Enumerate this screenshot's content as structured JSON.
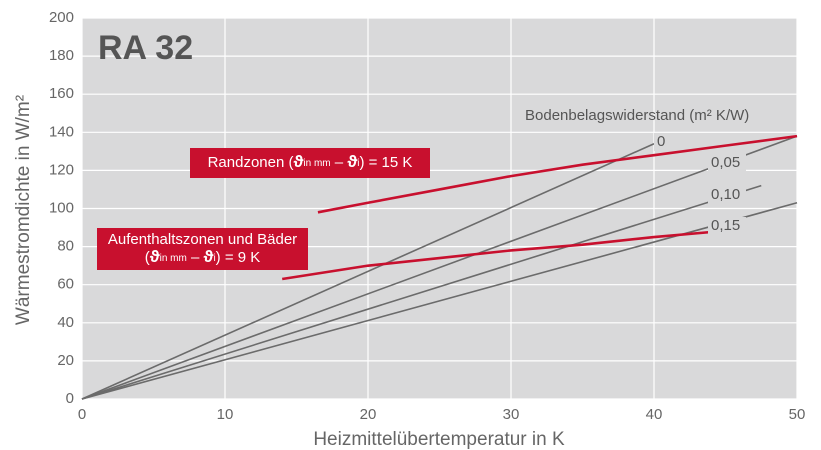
{
  "chart_data": {
    "type": "line",
    "title": "RA 32",
    "xlabel": "Heizmittelübertemperatur in K",
    "ylabel": "Wärmestromdichte in W/m²",
    "legend_title": "Bodenbelagswiderstand (m² K/W)",
    "xlim": [
      0,
      50
    ],
    "ylim": [
      0,
      200
    ],
    "xticks": [
      0,
      10,
      20,
      30,
      40,
      50
    ],
    "yticks": [
      0,
      20,
      40,
      60,
      80,
      100,
      120,
      140,
      160,
      180,
      200
    ],
    "grid": true,
    "background": "#d9d9da",
    "series": [
      {
        "name": "0",
        "color": "#6b6b6b",
        "x": [
          0,
          40
        ],
        "values": [
          0,
          134
        ]
      },
      {
        "name": "0,05",
        "color": "#6b6b6b",
        "x": [
          0,
          50
        ],
        "values": [
          0,
          138
        ]
      },
      {
        "name": "0,10",
        "color": "#6b6b6b",
        "x": [
          0,
          47.5
        ],
        "values": [
          0,
          112
        ]
      },
      {
        "name": "0,15",
        "color": "#6b6b6b",
        "x": [
          0,
          50
        ],
        "values": [
          0,
          103
        ]
      },
      {
        "color": "#c8102e",
        "x": [
          16.5,
          20,
          25,
          30,
          35,
          40,
          45,
          50
        ],
        "values": [
          98,
          103,
          110,
          117,
          123,
          128,
          133,
          138
        ]
      },
      {
        "color": "#c8102e",
        "x": [
          14,
          20,
          25,
          30,
          35,
          40,
          44.5
        ],
        "values": [
          63,
          70,
          74,
          78,
          81,
          85,
          88
        ]
      }
    ],
    "annotations": [
      {
        "color": "#c8102e",
        "lines": [
          [
            "Randzonen (",
            "ϑ",
            "in mm",
            " – ",
            "ϑ",
            "i",
            ") = 15 K"
          ]
        ]
      },
      {
        "color": "#c8102e",
        "lines": [
          [
            "Aufenthaltszonen und Bäder"
          ],
          [
            "(",
            "ϑ",
            "in mm",
            " – ",
            "ϑ",
            "i",
            ") = 9 K"
          ]
        ]
      }
    ]
  }
}
